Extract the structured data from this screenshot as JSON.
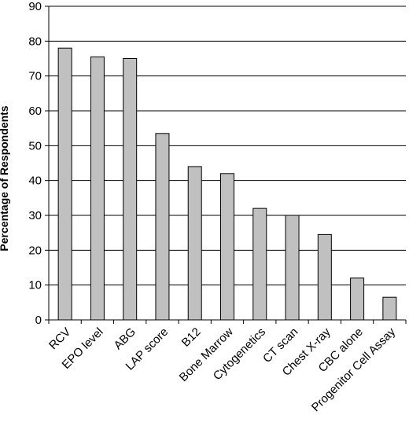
{
  "chart_data": {
    "type": "bar",
    "ylabel": "Percentage of Respondents",
    "xlabel": "",
    "ylim": [
      0,
      90
    ],
    "yticks": [
      0,
      10,
      20,
      30,
      40,
      50,
      60,
      70,
      80,
      90
    ],
    "grid": true,
    "legend": "none",
    "bar_color": "#c0c0c0",
    "categories": [
      "RCV",
      "EPO level",
      "ABG",
      "LAP score",
      "B12",
      "Bone Marrow",
      "Cytogenetics",
      "CT scan",
      "Chest X-ray",
      "CBC alone",
      "Progenitor Cell Assay"
    ],
    "values": [
      78,
      75.5,
      75,
      53.5,
      44,
      42,
      32,
      30,
      24.5,
      12,
      6.5
    ]
  }
}
